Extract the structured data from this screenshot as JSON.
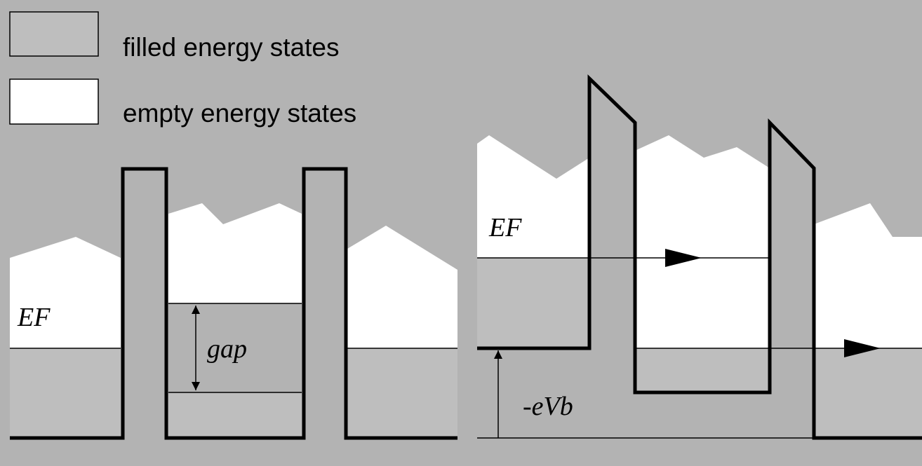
{
  "legend": [
    {
      "label": "filled energy states"
    },
    {
      "label": "empty energy states"
    }
  ],
  "left_diagram": {
    "fermi_label": "EF",
    "gap_label": "gap"
  },
  "right_diagram": {
    "fermi_label": "EF",
    "bias_label": "-eVb"
  }
}
